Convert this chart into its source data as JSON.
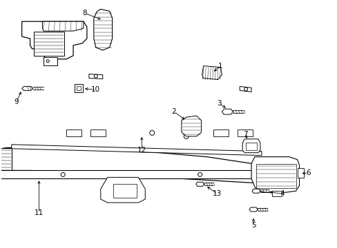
{
  "background_color": "#ffffff",
  "line_color": "#000000",
  "fig_width": 4.89,
  "fig_height": 3.6,
  "dpi": 100,
  "label_fontsize": 7.5,
  "arrow_lw": 0.6,
  "part_lw": 0.8
}
